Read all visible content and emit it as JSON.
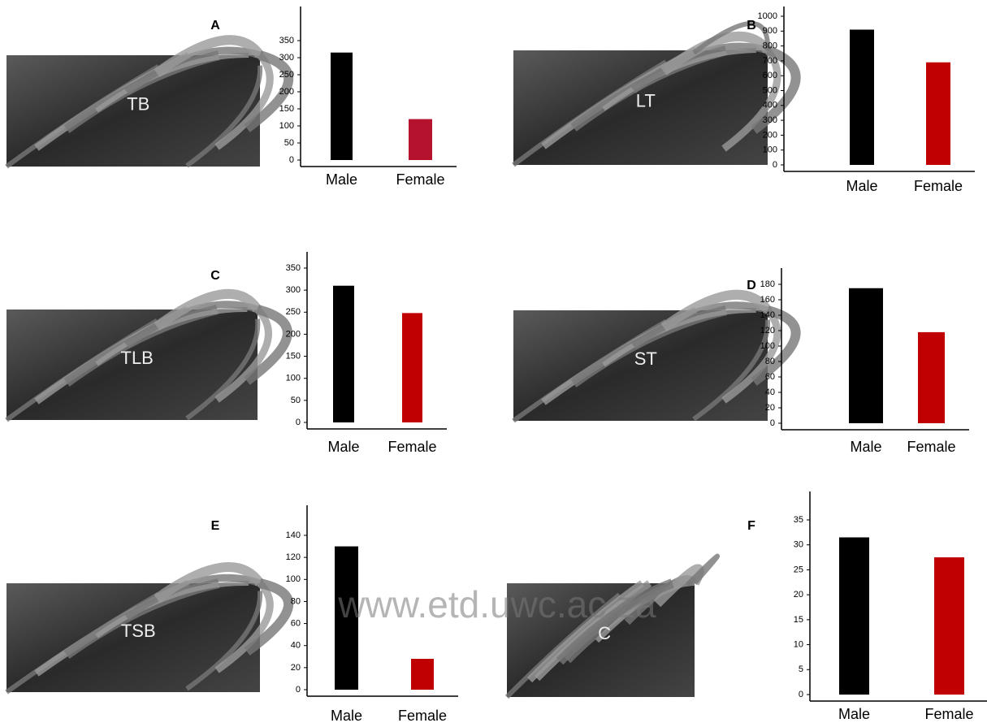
{
  "watermark": "www.etd.uwc.ac.za",
  "chart_data": [
    {
      "type": "bar",
      "panel_label": "A",
      "image_label": "TB",
      "categories": [
        "Male",
        "Female"
      ],
      "values": [
        315,
        120
      ],
      "colors": [
        "#000000",
        "#b5122e"
      ],
      "ylim": [
        0,
        350
      ],
      "yticks": [
        0,
        50,
        100,
        150,
        200,
        250,
        300,
        350
      ]
    },
    {
      "type": "bar",
      "panel_label": "B",
      "image_label": "LT",
      "categories": [
        "Male",
        "Female"
      ],
      "values": [
        910,
        690
      ],
      "colors": [
        "#000000",
        "#c00000"
      ],
      "ylim": [
        0,
        1000
      ],
      "yticks": [
        0,
        100,
        200,
        300,
        400,
        500,
        600,
        700,
        800,
        900,
        1000
      ]
    },
    {
      "type": "bar",
      "panel_label": "C",
      "image_label": "TLB",
      "categories": [
        "Male",
        "Female"
      ],
      "values": [
        310,
        248
      ],
      "colors": [
        "#000000",
        "#c00000"
      ],
      "ylim": [
        0,
        350
      ],
      "yticks": [
        0,
        50,
        100,
        150,
        200,
        250,
        300,
        350
      ]
    },
    {
      "type": "bar",
      "panel_label": "D",
      "image_label": "ST",
      "categories": [
        "Male",
        "Female"
      ],
      "values": [
        175,
        118
      ],
      "colors": [
        "#000000",
        "#c00000"
      ],
      "ylim": [
        0,
        180
      ],
      "yticks": [
        0,
        20,
        40,
        60,
        80,
        100,
        120,
        140,
        160,
        180
      ]
    },
    {
      "type": "bar",
      "panel_label": "E",
      "image_label": "TSB",
      "categories": [
        "Male",
        "Female"
      ],
      "values": [
        130,
        28
      ],
      "colors": [
        "#000000",
        "#c00000"
      ],
      "ylim": [
        0,
        140
      ],
      "yticks": [
        0,
        20,
        40,
        60,
        80,
        100,
        120,
        140
      ]
    },
    {
      "type": "bar",
      "panel_label": "F",
      "image_label": "C",
      "categories": [
        "Male",
        "Female"
      ],
      "values": [
        31.5,
        27.5
      ],
      "colors": [
        "#000000",
        "#c00000"
      ],
      "ylim": [
        0,
        35
      ],
      "yticks": [
        0,
        5,
        10,
        15,
        20,
        25,
        30,
        35
      ]
    }
  ]
}
